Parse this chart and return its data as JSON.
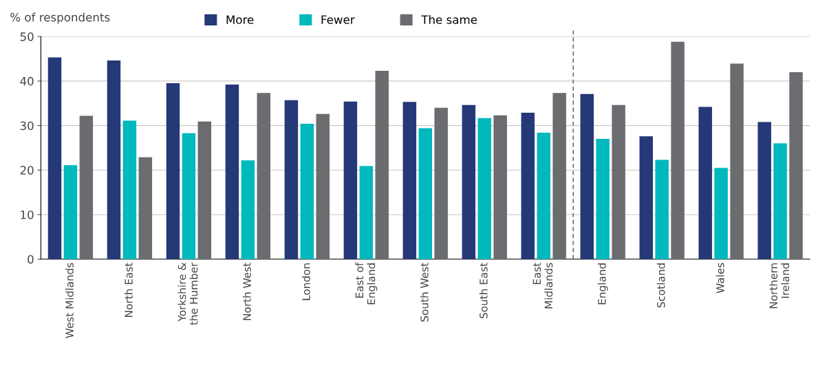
{
  "chart_data": {
    "type": "bar",
    "ylabel": "% of respondents",
    "categories": [
      "West Midlands",
      "North East",
      "Yorkshire &\nthe Humber",
      "North West",
      "London",
      "East of\nEngland",
      "South West",
      "South East",
      "East\nMidlands",
      "England",
      "Scotland",
      "Wales",
      "Northern\nIreland"
    ],
    "series": [
      {
        "name": "More",
        "color": "#253877",
        "values": [
          45.3,
          44.6,
          39.5,
          39.2,
          35.7,
          35.4,
          35.3,
          34.6,
          32.9,
          37.1,
          27.6,
          34.2,
          30.8
        ]
      },
      {
        "name": "Fewer",
        "color": "#00b9bd",
        "values": [
          21.1,
          31.1,
          28.3,
          22.2,
          30.4,
          20.9,
          29.4,
          31.7,
          28.4,
          27.0,
          22.3,
          20.5,
          26.0
        ]
      },
      {
        "name": "The same",
        "color": "#6b6c70",
        "values": [
          32.2,
          22.9,
          30.9,
          37.3,
          32.6,
          42.3,
          34.0,
          32.3,
          37.3,
          34.6,
          48.8,
          43.9,
          42.0
        ]
      }
    ],
    "ylim": [
      0,
      50
    ],
    "yticks": [
      0,
      10,
      20,
      30,
      40,
      50
    ],
    "grid": "y",
    "legend": "top"
  }
}
